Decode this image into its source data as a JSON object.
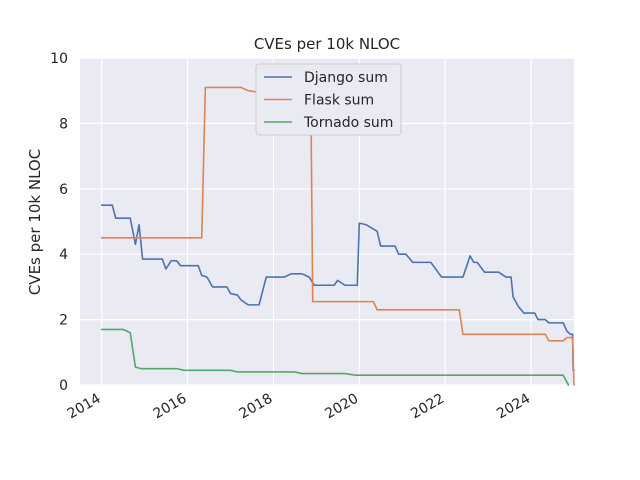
{
  "chart_data": {
    "type": "line",
    "title": "CVEs per 10k NLOC",
    "xlabel": "",
    "ylabel": "CVEs per 10k NLOC",
    "xlim": [
      "2013-07-01",
      "2025-01-01"
    ],
    "ylim": [
      0,
      10
    ],
    "x_ticks": [
      {
        "value": "2014-01-01",
        "label": "2014"
      },
      {
        "value": "2016-01-01",
        "label": "2016"
      },
      {
        "value": "2018-01-01",
        "label": "2018"
      },
      {
        "value": "2020-01-01",
        "label": "2020"
      },
      {
        "value": "2022-01-01",
        "label": "2022"
      },
      {
        "value": "2024-01-01",
        "label": "2024"
      }
    ],
    "y_ticks": [
      0,
      2,
      4,
      6,
      8,
      10
    ],
    "grid": true,
    "legend_position": "top-center",
    "series": [
      {
        "name": "Django sum",
        "color": "#4c72b0",
        "points": [
          [
            "2014-01-01",
            5.5
          ],
          [
            "2014-04-01",
            5.5
          ],
          [
            "2014-05-01",
            5.1
          ],
          [
            "2014-09-01",
            5.1
          ],
          [
            "2014-10-15",
            4.3
          ],
          [
            "2014-11-15",
            4.9
          ],
          [
            "2014-12-15",
            3.85
          ],
          [
            "2015-06-01",
            3.85
          ],
          [
            "2015-07-01",
            3.55
          ],
          [
            "2015-08-15",
            3.8
          ],
          [
            "2015-10-01",
            3.8
          ],
          [
            "2015-11-01",
            3.65
          ],
          [
            "2016-04-01",
            3.65
          ],
          [
            "2016-05-01",
            3.35
          ],
          [
            "2016-06-15",
            3.3
          ],
          [
            "2016-08-01",
            3.0
          ],
          [
            "2016-12-01",
            3.0
          ],
          [
            "2017-01-01",
            2.8
          ],
          [
            "2017-03-01",
            2.75
          ],
          [
            "2017-04-01",
            2.6
          ],
          [
            "2017-06-01",
            2.45
          ],
          [
            "2017-09-01",
            2.45
          ],
          [
            "2017-11-01",
            3.3
          ],
          [
            "2018-04-01",
            3.3
          ],
          [
            "2018-06-01",
            3.4
          ],
          [
            "2018-09-01",
            3.4
          ],
          [
            "2018-11-01",
            3.3
          ],
          [
            "2018-12-15",
            3.05
          ],
          [
            "2019-06-01",
            3.05
          ],
          [
            "2019-07-01",
            3.2
          ],
          [
            "2019-09-01",
            3.05
          ],
          [
            "2019-12-15",
            3.05
          ],
          [
            "2020-01-01",
            4.95
          ],
          [
            "2020-03-01",
            4.9
          ],
          [
            "2020-06-01",
            4.7
          ],
          [
            "2020-07-01",
            4.25
          ],
          [
            "2020-11-01",
            4.25
          ],
          [
            "2020-12-01",
            4.0
          ],
          [
            "2021-02-01",
            4.0
          ],
          [
            "2021-04-01",
            3.75
          ],
          [
            "2021-09-01",
            3.75
          ],
          [
            "2021-12-01",
            3.3
          ],
          [
            "2022-06-01",
            3.3
          ],
          [
            "2022-08-01",
            3.95
          ],
          [
            "2022-09-01",
            3.75
          ],
          [
            "2022-10-01",
            3.75
          ],
          [
            "2022-12-01",
            3.45
          ],
          [
            "2023-04-01",
            3.45
          ],
          [
            "2023-06-01",
            3.3
          ],
          [
            "2023-07-15",
            3.3
          ],
          [
            "2023-08-01",
            2.7
          ],
          [
            "2023-09-15",
            2.4
          ],
          [
            "2023-11-01",
            2.2
          ],
          [
            "2024-02-01",
            2.2
          ],
          [
            "2024-03-01",
            2.0
          ],
          [
            "2024-05-01",
            2.0
          ],
          [
            "2024-06-01",
            1.9
          ],
          [
            "2024-10-01",
            1.9
          ],
          [
            "2024-11-01",
            1.65
          ],
          [
            "2024-12-01",
            1.55
          ],
          [
            "2024-12-20",
            1.55
          ],
          [
            "2024-12-25",
            0.45
          ],
          [
            "2025-01-01",
            0.45
          ]
        ]
      },
      {
        "name": "Flask sum",
        "color": "#dd8452",
        "points": [
          [
            "2014-01-01",
            4.5
          ],
          [
            "2016-05-01",
            4.5
          ],
          [
            "2016-06-01",
            9.1
          ],
          [
            "2017-04-01",
            9.1
          ],
          [
            "2017-06-01",
            9.0
          ],
          [
            "2017-09-01",
            8.95
          ],
          [
            "2018-09-01",
            8.95
          ],
          [
            "2018-11-15",
            8.95
          ],
          [
            "2018-12-01",
            2.55
          ],
          [
            "2020-05-01",
            2.55
          ],
          [
            "2020-06-01",
            2.3
          ],
          [
            "2022-05-01",
            2.3
          ],
          [
            "2022-06-01",
            1.55
          ],
          [
            "2023-12-01",
            1.55
          ],
          [
            "2024-05-01",
            1.55
          ],
          [
            "2024-06-01",
            1.35
          ],
          [
            "2024-10-01",
            1.35
          ],
          [
            "2024-11-01",
            1.45
          ],
          [
            "2024-12-20",
            1.45
          ],
          [
            "2025-01-01",
            0.0
          ]
        ]
      },
      {
        "name": "Tornado sum",
        "color": "#55a868",
        "points": [
          [
            "2014-01-01",
            1.7
          ],
          [
            "2014-07-01",
            1.7
          ],
          [
            "2014-09-01",
            1.6
          ],
          [
            "2014-10-15",
            0.55
          ],
          [
            "2014-12-01",
            0.5
          ],
          [
            "2015-10-01",
            0.5
          ],
          [
            "2015-12-01",
            0.45
          ],
          [
            "2017-01-01",
            0.45
          ],
          [
            "2017-03-01",
            0.4
          ],
          [
            "2018-07-01",
            0.4
          ],
          [
            "2018-09-01",
            0.35
          ],
          [
            "2019-09-01",
            0.35
          ],
          [
            "2019-12-01",
            0.3
          ],
          [
            "2024-10-01",
            0.3
          ],
          [
            "2024-11-15",
            0.0
          ]
        ]
      }
    ]
  }
}
